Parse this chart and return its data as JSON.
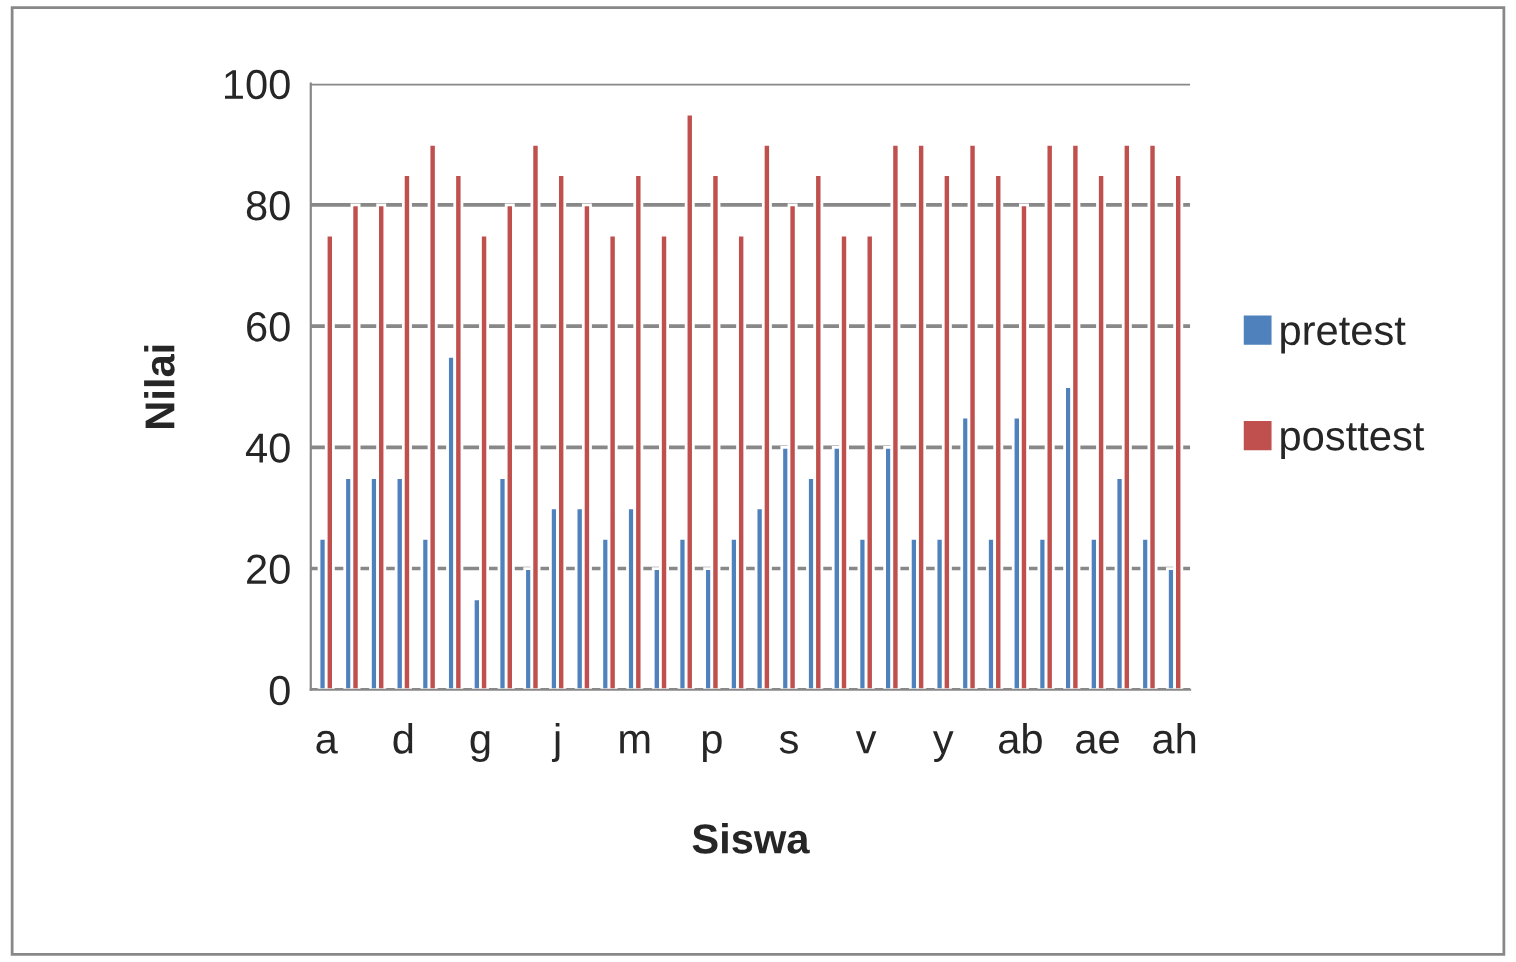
{
  "chart_data": {
    "type": "bar",
    "xlabel": "Siswa",
    "ylabel": "Nilai",
    "categories": [
      "a",
      null,
      null,
      "d",
      null,
      null,
      "g",
      null,
      null,
      "j",
      null,
      null,
      "m",
      null,
      null,
      "p",
      null,
      null,
      "s",
      null,
      null,
      "v",
      null,
      null,
      "y",
      null,
      null,
      "ab",
      null,
      null,
      "ae",
      null,
      null,
      "ah"
    ],
    "series": [
      {
        "name": "pretest",
        "color": "#4f81bd",
        "values": [
          25,
          35,
          35,
          35,
          25,
          55,
          15,
          35,
          20,
          30,
          30,
          25,
          30,
          20,
          25,
          20,
          25,
          30,
          40,
          35,
          40,
          25,
          40,
          25,
          25,
          45,
          25,
          45,
          25,
          50,
          25,
          35,
          25,
          20
        ]
      },
      {
        "name": "posttest",
        "color": "#c0504d",
        "values": [
          75,
          80,
          80,
          85,
          90,
          85,
          75,
          80,
          90,
          85,
          80,
          75,
          85,
          75,
          95,
          85,
          75,
          90,
          80,
          85,
          75,
          75,
          90,
          90,
          85,
          90,
          85,
          80,
          90,
          90,
          85,
          90,
          90,
          85
        ]
      }
    ],
    "ylim": [
      0,
      100
    ],
    "yticks": [
      0,
      20,
      40,
      60,
      80,
      100
    ],
    "grid": "y",
    "legend": "right"
  }
}
